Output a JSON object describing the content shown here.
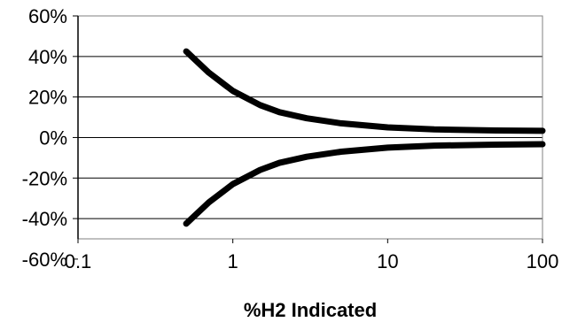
{
  "chart_data": {
    "type": "line",
    "title": "",
    "xlabel": "%H2 Indicated",
    "ylabel": "",
    "x_scale": "log",
    "xlim": [
      0.1,
      100
    ],
    "ylim": [
      -60,
      60
    ],
    "x_ticks": [
      0.1,
      1,
      10,
      100
    ],
    "x_tick_labels": [
      "0.1",
      "1",
      "10",
      "100"
    ],
    "y_ticks": [
      60,
      40,
      20,
      0,
      -20,
      -40,
      -60
    ],
    "y_tick_labels": [
      "60%",
      "40%",
      "20%",
      "0%",
      "-20%",
      "-40%",
      "-60%"
    ],
    "y_gridlines": [
      60,
      40,
      20,
      0,
      -20,
      -40,
      -50
    ],
    "grid": true,
    "colors": {
      "line": "#000000",
      "grid": "#000000",
      "frame": "#808080",
      "axis": "#000000"
    },
    "series": [
      {
        "x": [
          0.5,
          0.7,
          1,
          1.5,
          2,
          3,
          5,
          10,
          20,
          50,
          100
        ],
        "y": [
          42.5,
          32,
          23,
          16,
          12.5,
          9.5,
          7,
          5,
          4,
          3.5,
          3.3
        ]
      },
      {
        "x": [
          0.5,
          0.7,
          1,
          1.5,
          2,
          3,
          5,
          10,
          20,
          50,
          100
        ],
        "y": [
          -42.5,
          -32,
          -23,
          -16,
          -12.5,
          -9.5,
          -7,
          -5,
          -4,
          -3.5,
          -3.3
        ]
      }
    ]
  }
}
